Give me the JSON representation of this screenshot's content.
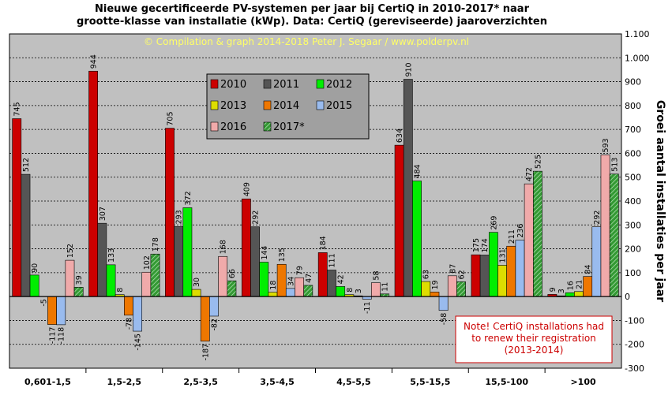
{
  "header": {
    "title_line1": "Nieuwe  gecertificeerde PV-systemen per jaar bij CertiQ in 2010-2017*  naar",
    "title_line2": "grootte-klasse van installatie (kWp). Data: CertiQ (gereviseerde) jaaroverzichten",
    "copyright": "© Compilation  & graph 2014-2018 Peter J. Segaar / www.polderpv.nl"
  },
  "note": {
    "line1": "Note! CertiQ installations had",
    "line2": "to renew their registration",
    "line3": "(2013-2014)"
  },
  "colors": {
    "plot_bg": "#c0c0c0",
    "legend_bg": "#a0a0a0",
    "grid": "#000000",
    "note_border": "#cc0000"
  },
  "chart_data": {
    "type": "bar",
    "ylabel": "Groei  aantal installaties  per jaar",
    "xlabel": "",
    "ylim": [
      -300,
      1100
    ],
    "yticks": [
      -300,
      -200,
      -100,
      0,
      100,
      200,
      300,
      400,
      500,
      600,
      700,
      800,
      900,
      1000,
      1100
    ],
    "ytick_labels": [
      "-300",
      "-200",
      "-100",
      "0",
      "100",
      "200",
      "300",
      "400",
      "500",
      "600",
      "700",
      "800",
      "900",
      "1.000",
      "1.100"
    ],
    "y_axis_position": "right",
    "grid": "horizontal",
    "legend_position": "top-center",
    "categories": [
      "0,601-1,5",
      "1,5-2,5",
      "2,5-3,5",
      "3,5-4,5",
      "4,5-5,5",
      "5,5-15,5",
      "15,5-100",
      ">100"
    ],
    "series": [
      {
        "name": "2010",
        "color": "#cc0000",
        "hatch": false,
        "values": [
          745,
          944,
          705,
          409,
          184,
          634,
          175,
          9
        ]
      },
      {
        "name": "2011",
        "color": "#555555",
        "hatch": false,
        "values": [
          512,
          307,
          293,
          292,
          111,
          910,
          174,
          3
        ]
      },
      {
        "name": "2012",
        "color": "#00ee00",
        "hatch": false,
        "values": [
          90,
          133,
          372,
          144,
          42,
          484,
          269,
          16
        ]
      },
      {
        "name": "2013",
        "color": "#dddd00",
        "hatch": false,
        "values": [
          null,
          8,
          30,
          18,
          8,
          63,
          131,
          21
        ]
      },
      {
        "name": "2014",
        "color": "#ee7700",
        "hatch": false,
        "values": [
          -117,
          -78,
          -187,
          135,
          3,
          19,
          211,
          84
        ]
      },
      {
        "name": "2015",
        "color": "#99bbee",
        "hatch": false,
        "values": [
          -118,
          -145,
          -82,
          34,
          -11,
          -58,
          236,
          292
        ]
      },
      {
        "name": "2016",
        "color": "#f0aaaa",
        "hatch": false,
        "values": [
          152,
          102,
          168,
          79,
          58,
          87,
          472,
          593
        ]
      },
      {
        "name": "2017*",
        "color": "#339933",
        "hatch": true,
        "values": [
          39,
          178,
          66,
          47,
          11,
          62,
          525,
          513
        ]
      }
    ],
    "extra_labels": [
      {
        "category": 0,
        "series": 3,
        "text": "-5"
      }
    ]
  }
}
